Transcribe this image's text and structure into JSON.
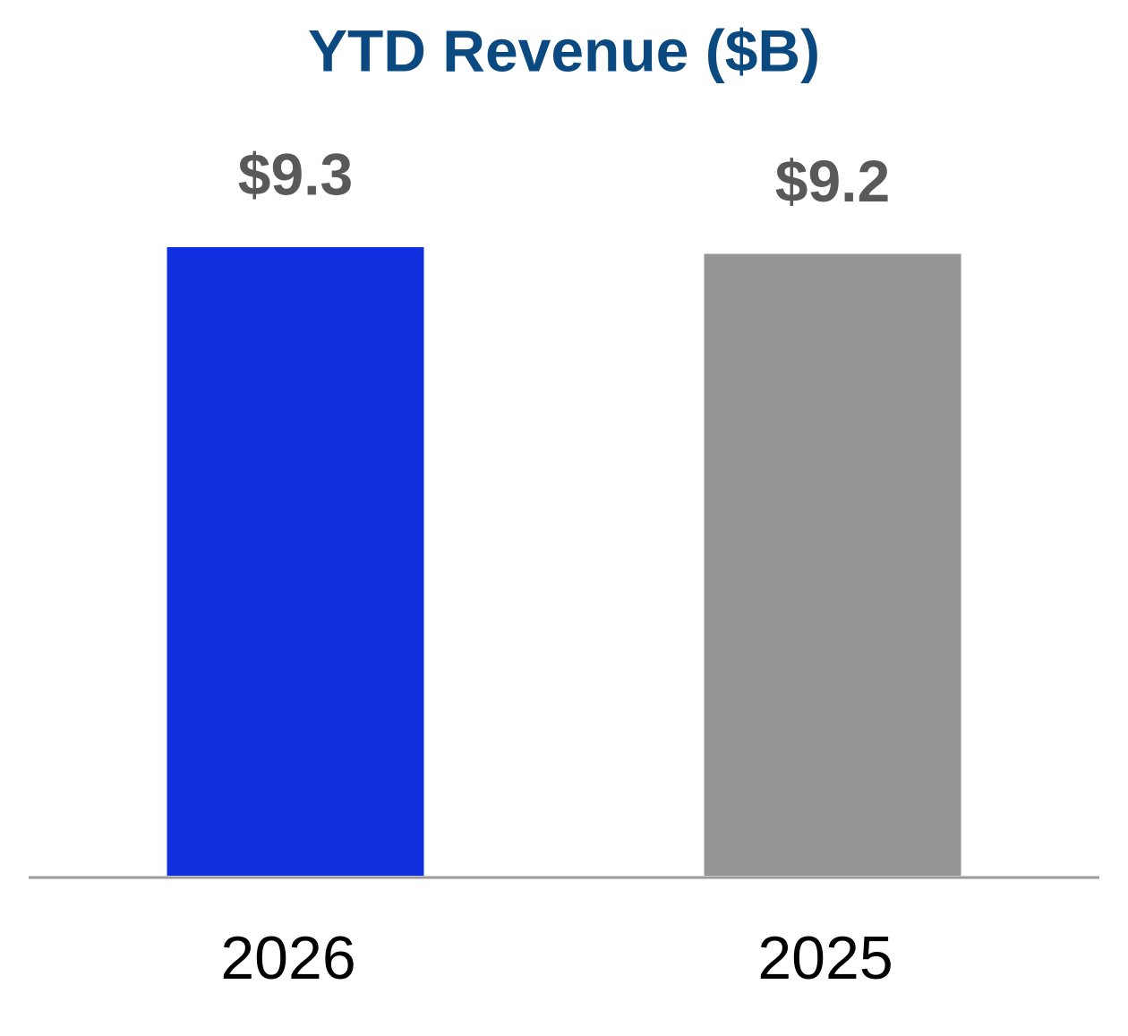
{
  "chart_data": {
    "type": "bar",
    "title": "YTD Revenue ($B)",
    "categories": [
      "2026",
      "2025"
    ],
    "values": [
      9.3,
      9.2
    ],
    "value_labels": [
      "$9.3",
      "$9.2"
    ],
    "colors": [
      "#1030e0",
      "#959595"
    ]
  }
}
